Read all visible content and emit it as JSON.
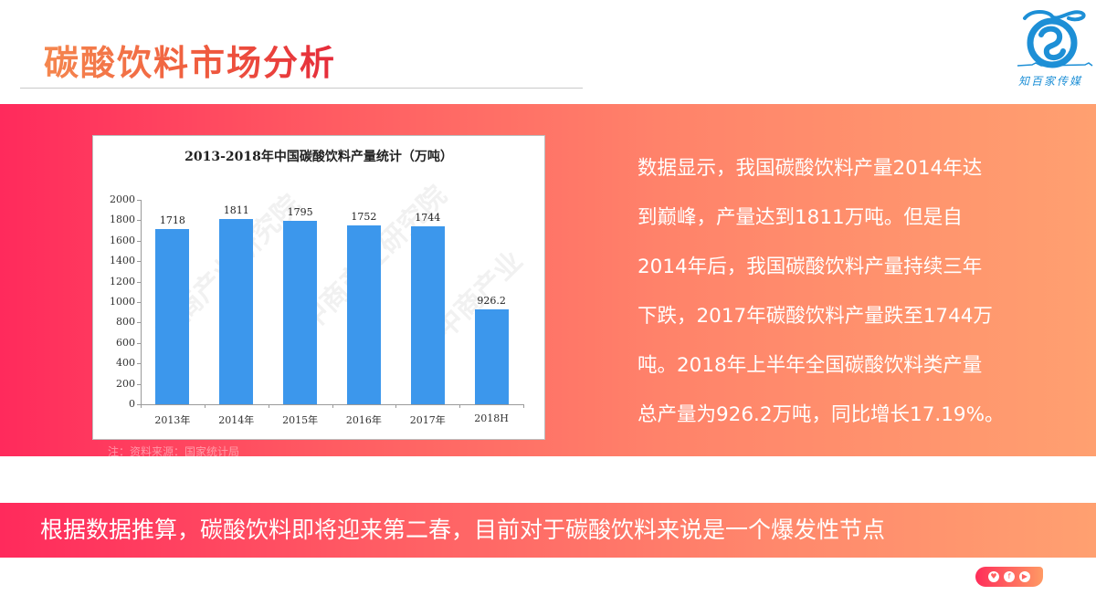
{
  "header": {
    "title": "碳酸饮料市场分析",
    "logo_brand": "知百家传媒"
  },
  "chart_data": {
    "type": "bar",
    "title": "2013-2018年中国碳酸饮料产量统计（万吨）",
    "categories": [
      "2013年",
      "2014年",
      "2015年",
      "2016年",
      "2017年",
      "2018H"
    ],
    "values": [
      1718,
      1811,
      1795,
      1752,
      1744,
      926.2
    ],
    "value_labels": [
      "1718",
      "1811",
      "1795",
      "1752",
      "1744",
      "926.2"
    ],
    "xlabel": "",
    "ylabel": "",
    "ylim": [
      0,
      2000
    ],
    "yticks": [
      0,
      200,
      400,
      600,
      800,
      1000,
      1200,
      1400,
      1600,
      1800,
      2000
    ],
    "bar_color": "#3c97ec",
    "grid": false,
    "legend": null,
    "source_note": "注：资料来源：国家统计局",
    "watermark": "中商产业研究院 www.chnci.com"
  },
  "description": {
    "lines": [
      "数据显示，我国碳酸饮料产量2014年达",
      "到巅峰，产量达到1811万吨。但是自",
      "2014年后，我国碳酸饮料产量持续三年",
      "下跌，2017年碳酸饮料产量跌至1744万",
      "吨。2018年上半年全国碳酸饮料类产量",
      "总产量为926.2万吨，同比增长17.19%。"
    ]
  },
  "conclusion": {
    "text": "根据数据推算，碳酸饮料即将迎来第二春，目前对于碳酸饮料来说是一个爆发性节点"
  },
  "social": {
    "icons": [
      "heart-icon",
      "facebook-icon",
      "play-icon"
    ],
    "glyphs": [
      "♥",
      "f",
      "▶"
    ]
  },
  "colors": {
    "gradient_start": "#ff2a5c",
    "gradient_end": "#ffa070",
    "bar": "#3c97ec",
    "logo_blue": "#1d8fd6"
  }
}
